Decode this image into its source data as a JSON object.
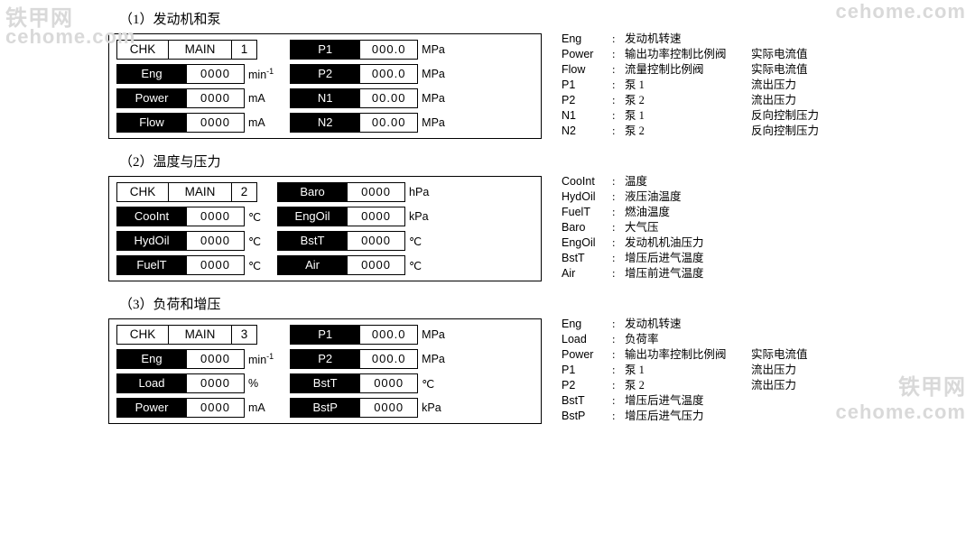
{
  "watermarks": {
    "tl_ch": "铁甲网",
    "tl_en": "cehome.com",
    "tr_en": "cehome.com",
    "br_ch": "铁甲网",
    "br_en": "cehome.com"
  },
  "sections": [
    {
      "title": "（1）发动机和泵",
      "header": {
        "chk": "CHK",
        "main": "MAIN",
        "num": "1"
      },
      "left": [
        {
          "label": "Eng",
          "value": "0000",
          "unit": "min⁻¹"
        },
        {
          "label": "Power",
          "value": "0000",
          "unit": "mA"
        },
        {
          "label": "Flow",
          "value": "0000",
          "unit": "mA"
        }
      ],
      "right": [
        {
          "label": "P1",
          "value": "000.0",
          "unit": "MPa"
        },
        {
          "label": "P2",
          "value": "000.0",
          "unit": "MPa"
        },
        {
          "label": "N1",
          "value": "00.00",
          "unit": "MPa"
        },
        {
          "label": "N2",
          "value": "00.00",
          "unit": "MPa"
        }
      ],
      "legend": [
        {
          "k": "Eng",
          "v": "发动机转速",
          "x": ""
        },
        {
          "k": "Power",
          "v": "输出功率控制比例阀",
          "x": "实际电流值"
        },
        {
          "k": "Flow",
          "v": "流量控制比例阀",
          "x": "实际电流值"
        },
        {
          "k": "P1",
          "v": "泵 1",
          "x": "流出压力"
        },
        {
          "k": "P2",
          "v": "泵 2",
          "x": "流出压力"
        },
        {
          "k": "N1",
          "v": "泵 1",
          "x": "反向控制压力"
        },
        {
          "k": "N2",
          "v": "泵 2",
          "x": "反向控制压力"
        }
      ]
    },
    {
      "title": "（2）温度与压力",
      "header": {
        "chk": "CHK",
        "main": "MAIN",
        "num": "2"
      },
      "left": [
        {
          "label": "CooInt",
          "value": "0000",
          "unit": "℃"
        },
        {
          "label": "HydOil",
          "value": "0000",
          "unit": "℃"
        },
        {
          "label": "FuelT",
          "value": "0000",
          "unit": "℃"
        }
      ],
      "right": [
        {
          "label": "Baro",
          "value": "0000",
          "unit": "hPa"
        },
        {
          "label": "EngOil",
          "value": "0000",
          "unit": "kPa"
        },
        {
          "label": "BstT",
          "value": "0000",
          "unit": "℃"
        },
        {
          "label": "Air",
          "value": "0000",
          "unit": "℃"
        }
      ],
      "legend": [
        {
          "k": "CooInt",
          "v": "温度",
          "x": ""
        },
        {
          "k": "HydOil",
          "v": "液压油温度",
          "x": ""
        },
        {
          "k": "FuelT",
          "v": "燃油温度",
          "x": ""
        },
        {
          "k": "Baro",
          "v": "大气压",
          "x": ""
        },
        {
          "k": "EngOil",
          "v": "发动机机油压力",
          "x": ""
        },
        {
          "k": "BstT",
          "v": "增压后进气温度",
          "x": ""
        },
        {
          "k": "Air",
          "v": "增压前进气温度",
          "x": ""
        }
      ]
    },
    {
      "title": "（3）负荷和增压",
      "header": {
        "chk": "CHK",
        "main": "MAIN",
        "num": "3"
      },
      "left": [
        {
          "label": "Eng",
          "value": "0000",
          "unit": "min⁻¹"
        },
        {
          "label": "Load",
          "value": "0000",
          "unit": "%"
        },
        {
          "label": "Power",
          "value": "0000",
          "unit": "mA"
        }
      ],
      "right": [
        {
          "label": "P1",
          "value": "000.0",
          "unit": "MPa"
        },
        {
          "label": "P2",
          "value": "000.0",
          "unit": "MPa"
        },
        {
          "label": "BstT",
          "value": "0000",
          "unit": "℃"
        },
        {
          "label": "BstP",
          "value": "0000",
          "unit": "kPa"
        }
      ],
      "legend": [
        {
          "k": "Eng",
          "v": "发动机转速",
          "x": ""
        },
        {
          "k": "Load",
          "v": "负荷率",
          "x": ""
        },
        {
          "k": "Power",
          "v": "输出功率控制比例阀",
          "x": "实际电流值"
        },
        {
          "k": "P1",
          "v": "泵 1",
          "x": "流出压力"
        },
        {
          "k": "P2",
          "v": "泵 2",
          "x": "流出压力"
        },
        {
          "k": "BstT",
          "v": "增压后进气温度",
          "x": ""
        },
        {
          "k": "BstP",
          "v": "增压后进气压力",
          "x": ""
        }
      ]
    }
  ],
  "style": {
    "panel_border": "#000000",
    "label_bg": "#000000",
    "label_fg": "#ffffff",
    "value_fg": "#000000",
    "watermark_color": "#d9d9d9",
    "font_body": "SimSun",
    "font_mono": "Arial"
  }
}
